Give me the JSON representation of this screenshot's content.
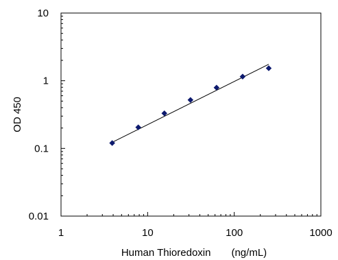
{
  "chart_data": {
    "type": "scatter",
    "xlabel": "Human Thioredoxin　　(ng/mL)",
    "ylabel": "OD 450",
    "x_scale": "log",
    "y_scale": "log",
    "xlim": [
      1,
      1000
    ],
    "ylim": [
      0.01,
      10
    ],
    "x_ticks": [
      "1",
      "10",
      "100",
      "1000"
    ],
    "y_ticks": [
      "0.01",
      "0.1",
      "1",
      "10"
    ],
    "grid": false,
    "legend": "none",
    "series": [
      {
        "x": [
          3.9,
          7.8,
          15.6,
          31.25,
          62.5,
          125,
          250
        ],
        "y": [
          0.12,
          0.205,
          0.33,
          0.52,
          0.79,
          1.15,
          1.53
        ],
        "color": "#0d1a6e",
        "marker": "diamond"
      }
    ],
    "trendline": {
      "x": [
        3.9,
        250
      ],
      "y": [
        0.123,
        1.75
      ],
      "color": "#000000",
      "style": "solid"
    }
  }
}
